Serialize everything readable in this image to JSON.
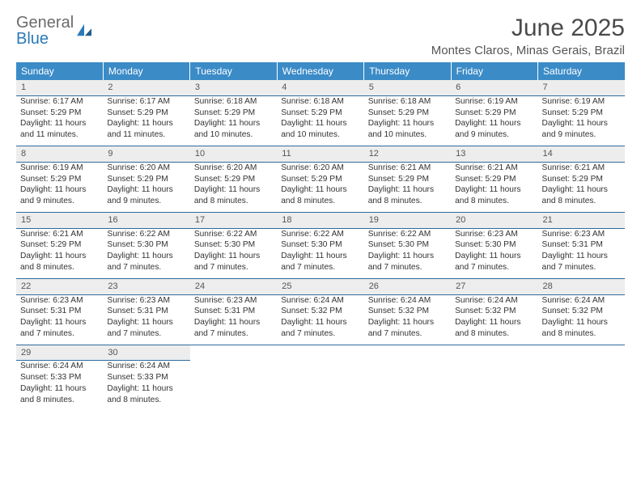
{
  "logo": {
    "word1": "General",
    "word2": "Blue"
  },
  "title": "June 2025",
  "location": "Montes Claros, Minas Gerais, Brazil",
  "colors": {
    "header_bg": "#3b8bc7",
    "header_text": "#ffffff",
    "daynum_bg": "#ededed",
    "cell_border": "#2e6a9e",
    "body_text": "#333333",
    "logo_gray": "#6b6b6b",
    "logo_blue": "#2a7ab9"
  },
  "weekdays": [
    "Sunday",
    "Monday",
    "Tuesday",
    "Wednesday",
    "Thursday",
    "Friday",
    "Saturday"
  ],
  "weeks": [
    [
      {
        "n": "1",
        "sr": "6:17 AM",
        "ss": "5:29 PM",
        "dl": "11 hours and 11 minutes."
      },
      {
        "n": "2",
        "sr": "6:17 AM",
        "ss": "5:29 PM",
        "dl": "11 hours and 11 minutes."
      },
      {
        "n": "3",
        "sr": "6:18 AM",
        "ss": "5:29 PM",
        "dl": "11 hours and 10 minutes."
      },
      {
        "n": "4",
        "sr": "6:18 AM",
        "ss": "5:29 PM",
        "dl": "11 hours and 10 minutes."
      },
      {
        "n": "5",
        "sr": "6:18 AM",
        "ss": "5:29 PM",
        "dl": "11 hours and 10 minutes."
      },
      {
        "n": "6",
        "sr": "6:19 AM",
        "ss": "5:29 PM",
        "dl": "11 hours and 9 minutes."
      },
      {
        "n": "7",
        "sr": "6:19 AM",
        "ss": "5:29 PM",
        "dl": "11 hours and 9 minutes."
      }
    ],
    [
      {
        "n": "8",
        "sr": "6:19 AM",
        "ss": "5:29 PM",
        "dl": "11 hours and 9 minutes."
      },
      {
        "n": "9",
        "sr": "6:20 AM",
        "ss": "5:29 PM",
        "dl": "11 hours and 9 minutes."
      },
      {
        "n": "10",
        "sr": "6:20 AM",
        "ss": "5:29 PM",
        "dl": "11 hours and 8 minutes."
      },
      {
        "n": "11",
        "sr": "6:20 AM",
        "ss": "5:29 PM",
        "dl": "11 hours and 8 minutes."
      },
      {
        "n": "12",
        "sr": "6:21 AM",
        "ss": "5:29 PM",
        "dl": "11 hours and 8 minutes."
      },
      {
        "n": "13",
        "sr": "6:21 AM",
        "ss": "5:29 PM",
        "dl": "11 hours and 8 minutes."
      },
      {
        "n": "14",
        "sr": "6:21 AM",
        "ss": "5:29 PM",
        "dl": "11 hours and 8 minutes."
      }
    ],
    [
      {
        "n": "15",
        "sr": "6:21 AM",
        "ss": "5:29 PM",
        "dl": "11 hours and 8 minutes."
      },
      {
        "n": "16",
        "sr": "6:22 AM",
        "ss": "5:30 PM",
        "dl": "11 hours and 7 minutes."
      },
      {
        "n": "17",
        "sr": "6:22 AM",
        "ss": "5:30 PM",
        "dl": "11 hours and 7 minutes."
      },
      {
        "n": "18",
        "sr": "6:22 AM",
        "ss": "5:30 PM",
        "dl": "11 hours and 7 minutes."
      },
      {
        "n": "19",
        "sr": "6:22 AM",
        "ss": "5:30 PM",
        "dl": "11 hours and 7 minutes."
      },
      {
        "n": "20",
        "sr": "6:23 AM",
        "ss": "5:30 PM",
        "dl": "11 hours and 7 minutes."
      },
      {
        "n": "21",
        "sr": "6:23 AM",
        "ss": "5:31 PM",
        "dl": "11 hours and 7 minutes."
      }
    ],
    [
      {
        "n": "22",
        "sr": "6:23 AM",
        "ss": "5:31 PM",
        "dl": "11 hours and 7 minutes."
      },
      {
        "n": "23",
        "sr": "6:23 AM",
        "ss": "5:31 PM",
        "dl": "11 hours and 7 minutes."
      },
      {
        "n": "24",
        "sr": "6:23 AM",
        "ss": "5:31 PM",
        "dl": "11 hours and 7 minutes."
      },
      {
        "n": "25",
        "sr": "6:24 AM",
        "ss": "5:32 PM",
        "dl": "11 hours and 7 minutes."
      },
      {
        "n": "26",
        "sr": "6:24 AM",
        "ss": "5:32 PM",
        "dl": "11 hours and 7 minutes."
      },
      {
        "n": "27",
        "sr": "6:24 AM",
        "ss": "5:32 PM",
        "dl": "11 hours and 8 minutes."
      },
      {
        "n": "28",
        "sr": "6:24 AM",
        "ss": "5:32 PM",
        "dl": "11 hours and 8 minutes."
      }
    ],
    [
      {
        "n": "29",
        "sr": "6:24 AM",
        "ss": "5:33 PM",
        "dl": "11 hours and 8 minutes."
      },
      {
        "n": "30",
        "sr": "6:24 AM",
        "ss": "5:33 PM",
        "dl": "11 hours and 8 minutes."
      },
      null,
      null,
      null,
      null,
      null
    ]
  ],
  "labels": {
    "sunrise": "Sunrise: ",
    "sunset": "Sunset: ",
    "daylight": "Daylight: "
  }
}
